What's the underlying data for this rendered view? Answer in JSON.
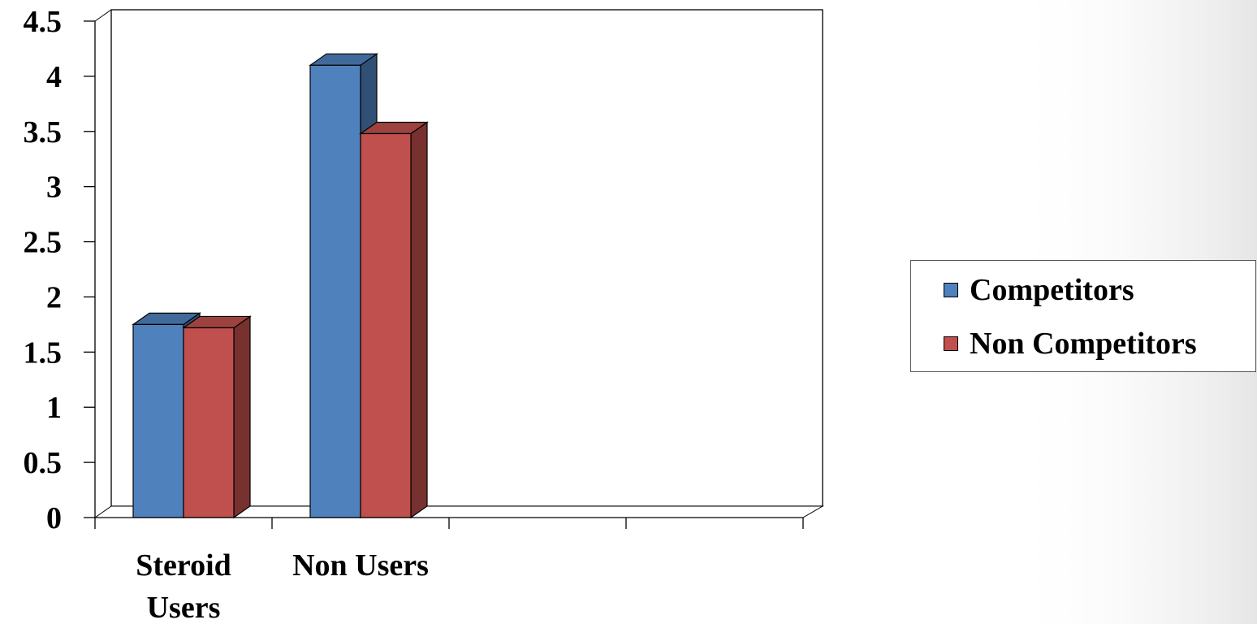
{
  "chart_data": {
    "type": "bar",
    "style": "3d-clustered-column",
    "categories": [
      "Steroid Users",
      "Non Users",
      "",
      ""
    ],
    "category_label_lines": [
      [
        "Steroid",
        "Users"
      ],
      [
        "Non Users"
      ],
      [
        ""
      ],
      [
        ""
      ]
    ],
    "series": [
      {
        "name": "Competitors",
        "color": "#4F81BD",
        "values": [
          1.75,
          4.1,
          null,
          null
        ]
      },
      {
        "name": "Non Competitors",
        "color": "#C0504D",
        "values": [
          1.72,
          3.48,
          null,
          null
        ]
      }
    ],
    "ylim": [
      0,
      4.5
    ],
    "yticks": [
      "0",
      "0.5",
      "1",
      "1.5",
      "2",
      "2.5",
      "3",
      "3.5",
      "4",
      "4.5"
    ],
    "title": "",
    "xlabel": "",
    "ylabel": "",
    "grid": false,
    "legend_position": "right"
  }
}
